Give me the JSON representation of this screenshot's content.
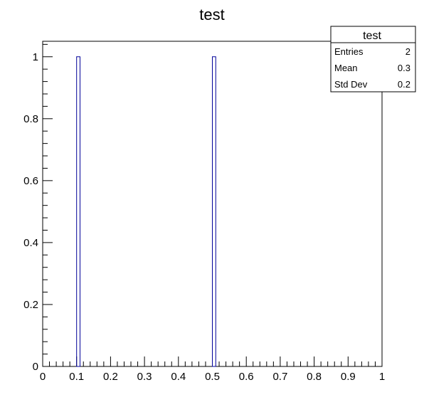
{
  "chart_data": {
    "type": "bar",
    "title": "test",
    "xlabel": "",
    "ylabel": "",
    "x_range": [
      0,
      1
    ],
    "y_range": [
      0,
      1.05
    ],
    "bins": 100,
    "bin_edges_filled": [
      [
        0.1,
        0.11
      ],
      [
        0.5,
        0.51
      ]
    ],
    "bin_contents": [
      1,
      1
    ],
    "x_ticks": [
      "0",
      "0.1",
      "0.2",
      "0.3",
      "0.4",
      "0.5",
      "0.6",
      "0.7",
      "0.8",
      "0.9",
      "1"
    ],
    "y_ticks": [
      "0",
      "0.2",
      "0.4",
      "0.6",
      "0.8",
      "1"
    ],
    "stats_box": {
      "title": "test",
      "rows": [
        {
          "label": "Entries",
          "value": "2"
        },
        {
          "label": "Mean",
          "value": "0.3"
        },
        {
          "label": "Std Dev",
          "value": "0.2"
        }
      ]
    },
    "colors": {
      "histogram_line": "#000099",
      "axis": "#000000",
      "background": "#ffffff"
    }
  }
}
